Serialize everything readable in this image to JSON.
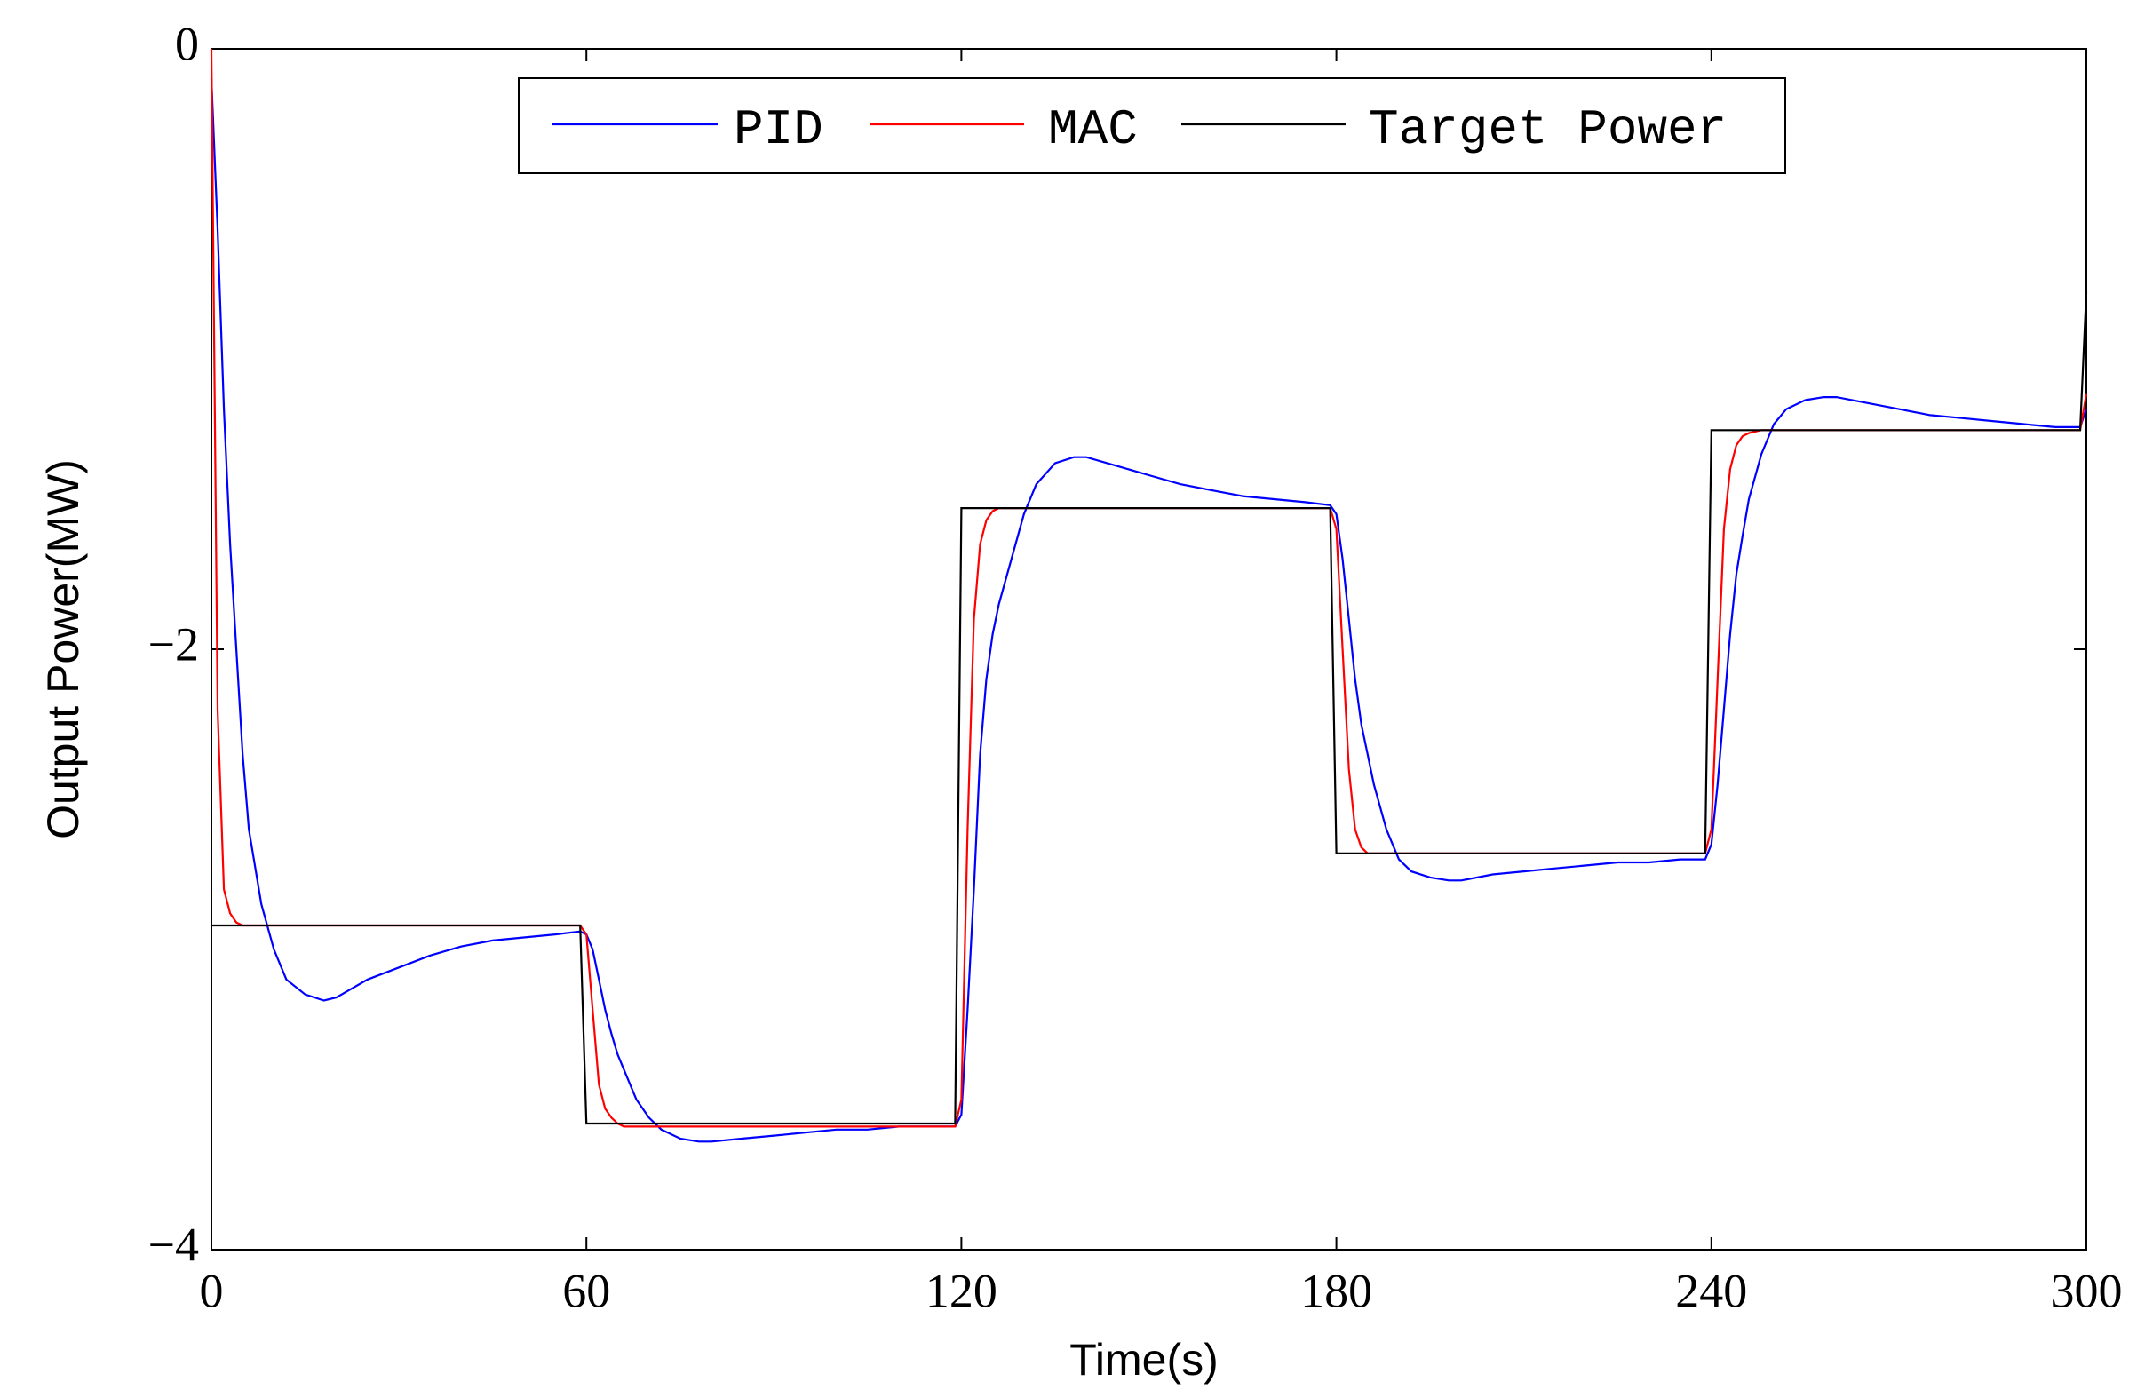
{
  "chart_data": {
    "type": "line",
    "xlabel": "Time(s)",
    "ylabel": "Output Power(MW)",
    "x": [
      0,
      1,
      2,
      3,
      4,
      5,
      6,
      8,
      10,
      12,
      15,
      18,
      20,
      25,
      30,
      35,
      40,
      45,
      50,
      55,
      59,
      60,
      61,
      62,
      63,
      64,
      65,
      66,
      68,
      70,
      72,
      75,
      78,
      80,
      85,
      90,
      95,
      100,
      105,
      110,
      115,
      119,
      120,
      121,
      122,
      123,
      124,
      125,
      126,
      128,
      130,
      132,
      135,
      138,
      140,
      145,
      150,
      155,
      160,
      165,
      170,
      175,
      179,
      180,
      181,
      182,
      183,
      184,
      185,
      186,
      188,
      190,
      192,
      195,
      198,
      200,
      205,
      210,
      215,
      220,
      225,
      230,
      235,
      239,
      240,
      241,
      242,
      243,
      244,
      245,
      246,
      248,
      250,
      252,
      255,
      258,
      260,
      265,
      270,
      275,
      280,
      285,
      290,
      295,
      299,
      300
    ],
    "series": [
      {
        "name": "PID",
        "color": "#0000ff",
        "values": [
          -0.1,
          -0.6,
          -1.2,
          -1.65,
          -2.0,
          -2.35,
          -2.6,
          -2.85,
          -3.0,
          -3.1,
          -3.15,
          -3.17,
          -3.16,
          -3.1,
          -3.06,
          -3.02,
          -2.99,
          -2.97,
          -2.96,
          -2.95,
          -2.94,
          -2.95,
          -3.0,
          -3.1,
          -3.2,
          -3.28,
          -3.35,
          -3.4,
          -3.5,
          -3.56,
          -3.6,
          -3.63,
          -3.64,
          -3.64,
          -3.63,
          -3.62,
          -3.61,
          -3.6,
          -3.6,
          -3.59,
          -3.59,
          -3.59,
          -3.55,
          -3.2,
          -2.8,
          -2.35,
          -2.1,
          -1.95,
          -1.85,
          -1.7,
          -1.55,
          -1.45,
          -1.38,
          -1.36,
          -1.36,
          -1.39,
          -1.42,
          -1.45,
          -1.47,
          -1.49,
          -1.5,
          -1.51,
          -1.52,
          -1.55,
          -1.7,
          -1.9,
          -2.1,
          -2.25,
          -2.35,
          -2.45,
          -2.6,
          -2.7,
          -2.74,
          -2.76,
          -2.77,
          -2.77,
          -2.75,
          -2.74,
          -2.73,
          -2.72,
          -2.71,
          -2.71,
          -2.7,
          -2.7,
          -2.65,
          -2.45,
          -2.2,
          -1.95,
          -1.75,
          -1.62,
          -1.5,
          -1.35,
          -1.25,
          -1.2,
          -1.17,
          -1.16,
          -1.16,
          -1.18,
          -1.2,
          -1.22,
          -1.23,
          -1.24,
          -1.25,
          -1.26,
          -1.26,
          -1.2
        ]
      },
      {
        "name": "MAC",
        "color": "#ff0000",
        "values": [
          0,
          -2.2,
          -2.8,
          -2.88,
          -2.91,
          -2.92,
          -2.92,
          -2.92,
          -2.92,
          -2.92,
          -2.92,
          -2.92,
          -2.92,
          -2.92,
          -2.92,
          -2.92,
          -2.92,
          -2.92,
          -2.92,
          -2.92,
          -2.92,
          -2.95,
          -3.2,
          -3.45,
          -3.53,
          -3.56,
          -3.58,
          -3.59,
          -3.59,
          -3.59,
          -3.59,
          -3.59,
          -3.59,
          -3.59,
          -3.59,
          -3.59,
          -3.59,
          -3.59,
          -3.59,
          -3.59,
          -3.59,
          -3.59,
          -3.5,
          -2.6,
          -1.9,
          -1.65,
          -1.57,
          -1.54,
          -1.53,
          -1.53,
          -1.53,
          -1.53,
          -1.53,
          -1.53,
          -1.53,
          -1.53,
          -1.53,
          -1.53,
          -1.53,
          -1.53,
          -1.53,
          -1.53,
          -1.53,
          -1.6,
          -2.0,
          -2.4,
          -2.6,
          -2.66,
          -2.68,
          -2.68,
          -2.68,
          -2.68,
          -2.68,
          -2.68,
          -2.68,
          -2.68,
          -2.68,
          -2.68,
          -2.68,
          -2.68,
          -2.68,
          -2.68,
          -2.68,
          -2.68,
          -2.6,
          -2.1,
          -1.6,
          -1.4,
          -1.32,
          -1.29,
          -1.28,
          -1.27,
          -1.27,
          -1.27,
          -1.27,
          -1.27,
          -1.27,
          -1.27,
          -1.27,
          -1.27,
          -1.27,
          -1.27,
          -1.27,
          -1.27,
          -1.27,
          -1.15
        ]
      },
      {
        "name": "Target Power",
        "color": "#000000",
        "values": [
          -2.92,
          -2.92,
          -2.92,
          -2.92,
          -2.92,
          -2.92,
          -2.92,
          -2.92,
          -2.92,
          -2.92,
          -2.92,
          -2.92,
          -2.92,
          -2.92,
          -2.92,
          -2.92,
          -2.92,
          -2.92,
          -2.92,
          -2.92,
          -2.92,
          -3.58,
          -3.58,
          -3.58,
          -3.58,
          -3.58,
          -3.58,
          -3.58,
          -3.58,
          -3.58,
          -3.58,
          -3.58,
          -3.58,
          -3.58,
          -3.58,
          -3.58,
          -3.58,
          -3.58,
          -3.58,
          -3.58,
          -3.58,
          -3.58,
          -1.53,
          -1.53,
          -1.53,
          -1.53,
          -1.53,
          -1.53,
          -1.53,
          -1.53,
          -1.53,
          -1.53,
          -1.53,
          -1.53,
          -1.53,
          -1.53,
          -1.53,
          -1.53,
          -1.53,
          -1.53,
          -1.53,
          -1.53,
          -1.53,
          -2.68,
          -2.68,
          -2.68,
          -2.68,
          -2.68,
          -2.68,
          -2.68,
          -2.68,
          -2.68,
          -2.68,
          -2.68,
          -2.68,
          -2.68,
          -2.68,
          -2.68,
          -2.68,
          -2.68,
          -2.68,
          -2.68,
          -2.68,
          -2.68,
          -1.27,
          -1.27,
          -1.27,
          -1.27,
          -1.27,
          -1.27,
          -1.27,
          -1.27,
          -1.27,
          -1.27,
          -1.27,
          -1.27,
          -1.27,
          -1.27,
          -1.27,
          -1.27,
          -1.27,
          -1.27,
          -1.27,
          -1.27,
          -1.27,
          -0.81
        ]
      }
    ],
    "xlim": [
      0,
      300
    ],
    "xticks": [
      0,
      60,
      120,
      180,
      240,
      300
    ],
    "ylim": [
      -4,
      0
    ],
    "yticks": [
      {
        "value": -4,
        "label": "−4"
      },
      {
        "value": -2,
        "label": "−2"
      },
      0
    ],
    "legend": "top"
  }
}
